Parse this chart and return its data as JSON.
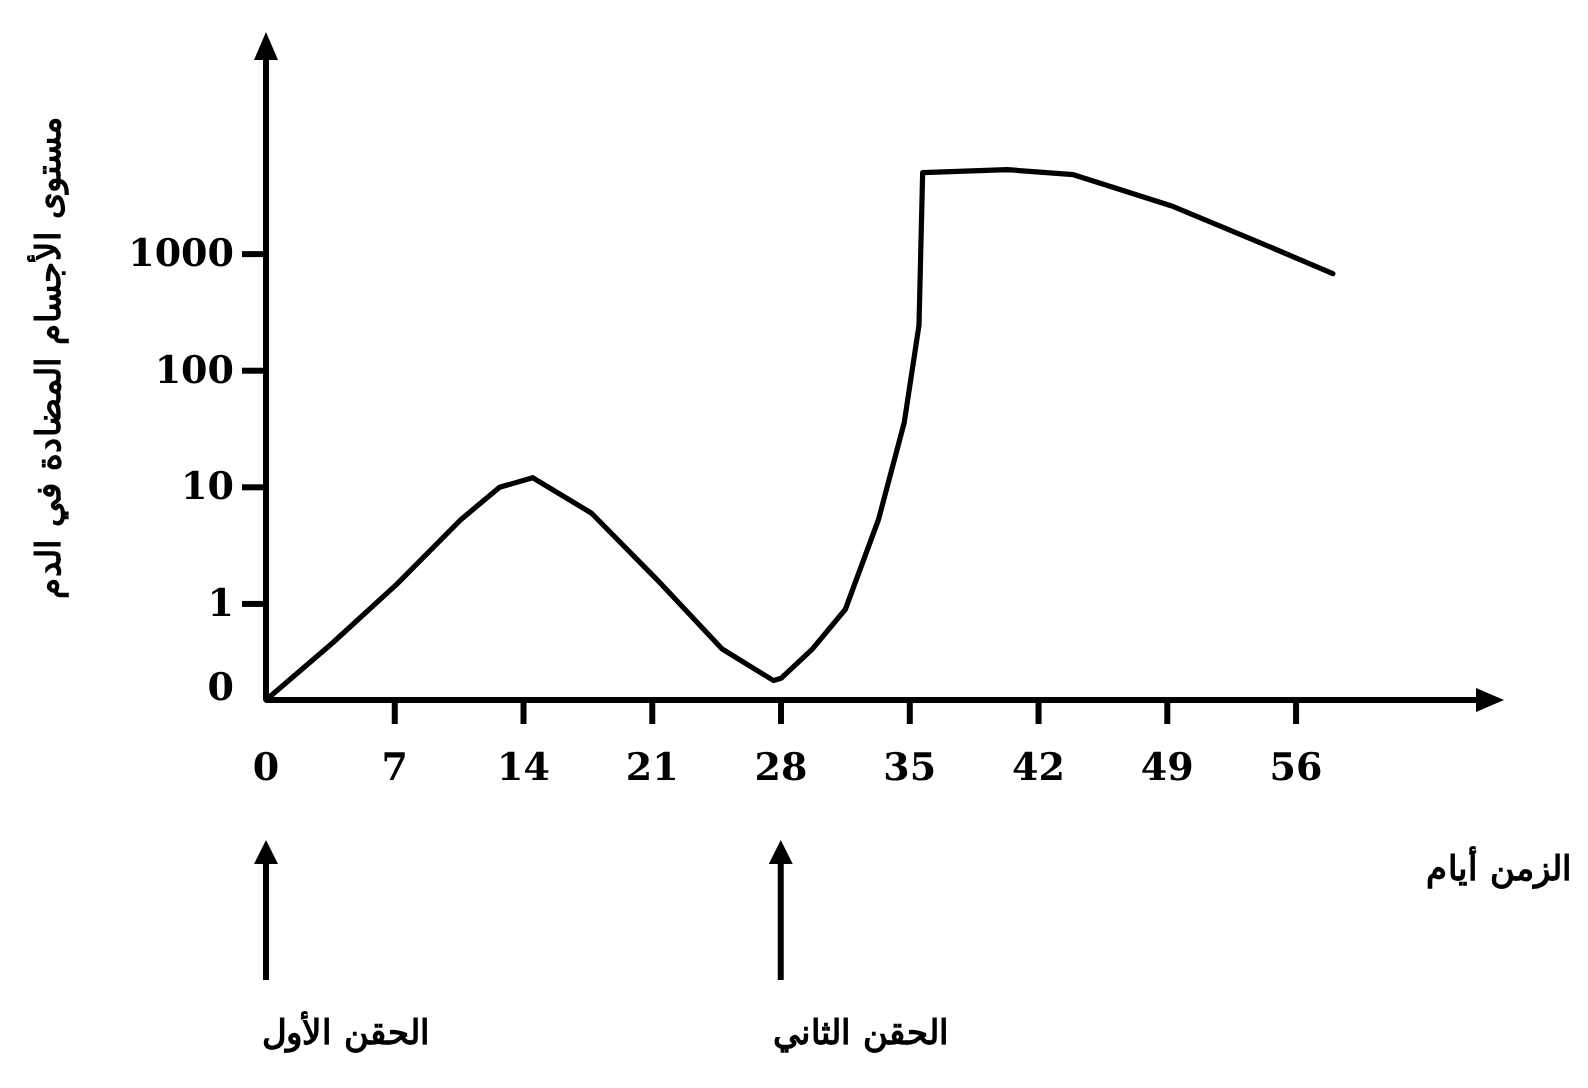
{
  "chart_data": {
    "type": "line",
    "xlabel": "الزمن أيام",
    "ylabel": "مستوى الأجسام المضادة في الدم",
    "log": true,
    "grid": false,
    "marker": "none",
    "line_style": "solid",
    "xlim": [
      0,
      66
    ],
    "xticks": [
      0,
      7,
      14,
      21,
      28,
      35,
      42,
      49,
      56
    ],
    "ylim": [
      0.15,
      50000
    ],
    "yticks": [
      {
        "value": 0.15,
        "label": "0"
      },
      1,
      10,
      100,
      1000
    ],
    "x": [
      0,
      3.6,
      7.1,
      10.6,
      12.7,
      14.5,
      17.7,
      21.2,
      24.8,
      27.6,
      28,
      29.7,
      31.5,
      33.3,
      34.7,
      35.5,
      35.7,
      40.3,
      43.9,
      49.2,
      53.8,
      58
    ],
    "series": [
      {
        "color": "#000000",
        "values": [
          0.15,
          0.46,
          1.47,
          5.3,
          10,
          12.1,
          6,
          1.65,
          0.41,
          0.22,
          0.23,
          0.41,
          0.9,
          5.3,
          36,
          245,
          5000,
          5300,
          4800,
          2600,
          1300,
          680
        ]
      }
    ],
    "annotations": [
      "الحقن الأول",
      "الحقن الثاني"
    ]
  }
}
